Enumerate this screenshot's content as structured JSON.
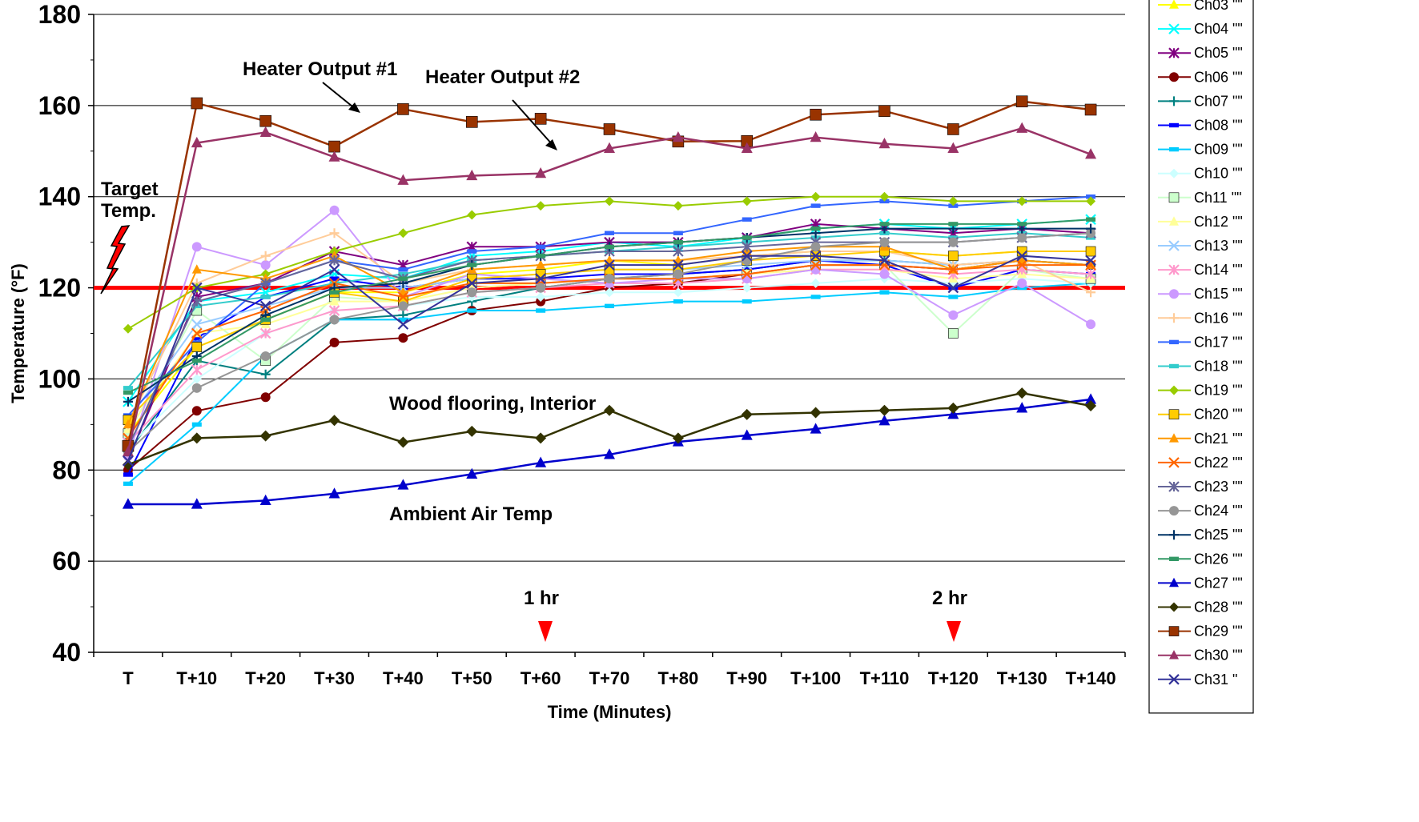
{
  "chart_data": {
    "type": "line",
    "xlabel": "Time (Minutes)",
    "ylabel": "Temperature (°F)",
    "ylim": [
      40,
      180
    ],
    "yticks": [
      40,
      60,
      80,
      100,
      120,
      140,
      160,
      180
    ],
    "grid": true,
    "legend_position": "right",
    "categories": [
      "T",
      "T+10",
      "T+20",
      "T+30",
      "T+40",
      "T+50",
      "T+60",
      "T+70",
      "T+80",
      "T+90",
      "T+100",
      "T+110",
      "T+120",
      "T+130",
      "T+140"
    ],
    "target_line": {
      "label": "Target Temp.",
      "value": 120,
      "color": "#ff0000"
    },
    "annotations": [
      {
        "text": "Heater Output #1"
      },
      {
        "text": "Heater Output #2"
      },
      {
        "text": "Wood flooring, Interior"
      },
      {
        "text": "Ambient Air Temp"
      }
    ],
    "time_markers": [
      {
        "label": "1 hr",
        "category": "T+60"
      },
      {
        "label": "2 hr",
        "category": "T+120"
      }
    ],
    "series": [
      {
        "name": "Ch03 \"\"",
        "color": "#ffff00",
        "marker": "triangle",
        "values": [
          88,
          107,
          113,
          119,
          119,
          123,
          124,
          126,
          125,
          127,
          128,
          128,
          127,
          128,
          128
        ]
      },
      {
        "name": "Ch04 \"\"",
        "color": "#00ffff",
        "marker": "x",
        "values": [
          95,
          117,
          119,
          123,
          122,
          127,
          128,
          130,
          129,
          131,
          133,
          134,
          133,
          134,
          135
        ]
      },
      {
        "name": "Ch05 \"\"",
        "color": "#800080",
        "marker": "star",
        "values": [
          82,
          118,
          121,
          128,
          125,
          129,
          129,
          130,
          130,
          131,
          134,
          133,
          132,
          133,
          132
        ]
      },
      {
        "name": "Ch06 \"\"",
        "color": "#800000",
        "marker": "circle",
        "values": [
          80,
          93,
          96,
          108,
          109,
          115,
          117,
          120,
          121,
          123,
          125,
          125,
          124,
          126,
          125
        ]
      },
      {
        "name": "Ch07 \"\"",
        "color": "#008080",
        "marker": "plus",
        "values": [
          84,
          104,
          101,
          113,
          114,
          117,
          120,
          122,
          123,
          124,
          126,
          126,
          125,
          126,
          125
        ]
      },
      {
        "name": "Ch08 \"\"",
        "color": "#0000ff",
        "marker": "dash",
        "values": [
          79,
          109,
          118,
          122,
          120,
          122,
          122,
          123,
          123,
          124,
          126,
          125,
          120,
          124,
          123
        ]
      },
      {
        "name": "Ch09 \"\"",
        "color": "#00ccff",
        "marker": "dash",
        "values": [
          77,
          90,
          105,
          113,
          113,
          115,
          115,
          116,
          117,
          117,
          118,
          119,
          118,
          120,
          121
        ]
      },
      {
        "name": "Ch10 \"\"",
        "color": "#ccffff",
        "marker": "diamond",
        "values": [
          85,
          100,
          110,
          115,
          116,
          118,
          118,
          119,
          119,
          120,
          121,
          122,
          121,
          122,
          121
        ]
      },
      {
        "name": "Ch11 \"\"",
        "color": "#ccffcc",
        "marker": "square",
        "values": [
          88,
          115,
          104,
          118,
          117,
          120,
          121,
          122,
          122,
          123,
          125,
          125,
          110,
          124,
          122
        ]
      },
      {
        "name": "Ch12 \"\"",
        "color": "#ffff99",
        "marker": "triangle",
        "values": [
          89,
          110,
          112,
          117,
          117,
          120,
          121,
          122,
          122,
          123,
          124,
          124,
          122,
          123,
          122
        ]
      },
      {
        "name": "Ch13 \"\"",
        "color": "#99ccff",
        "marker": "x",
        "values": [
          91,
          112,
          116,
          120,
          120,
          122,
          123,
          124,
          124,
          125,
          126,
          126,
          125,
          126,
          125
        ]
      },
      {
        "name": "Ch14 \"\"",
        "color": "#ff99cc",
        "marker": "star",
        "values": [
          86,
          102,
          110,
          115,
          116,
          119,
          120,
          121,
          121,
          122,
          124,
          124,
          123,
          124,
          123
        ]
      },
      {
        "name": "Ch15 \"\"",
        "color": "#cc99ff",
        "marker": "circle",
        "values": [
          83,
          129,
          125,
          137,
          118,
          123,
          122,
          121,
          122,
          122,
          124,
          123,
          114,
          121,
          112
        ]
      },
      {
        "name": "Ch16 \"\"",
        "color": "#ffcc99",
        "marker": "plus",
        "values": [
          90,
          121,
          127,
          132,
          121,
          124,
          125,
          126,
          126,
          127,
          128,
          128,
          125,
          126,
          119
        ]
      },
      {
        "name": "Ch17 \"\"",
        "color": "#3366ff",
        "marker": "dash",
        "values": [
          92,
          108,
          121,
          126,
          124,
          128,
          129,
          132,
          132,
          135,
          138,
          139,
          138,
          139,
          140
        ]
      },
      {
        "name": "Ch18 \"\"",
        "color": "#33cccc",
        "marker": "dash",
        "values": [
          98,
          116,
          118,
          121,
          123,
          126,
          127,
          128,
          129,
          130,
          131,
          132,
          131,
          132,
          131
        ]
      },
      {
        "name": "Ch19 \"\"",
        "color": "#99cc00",
        "marker": "diamond",
        "values": [
          111,
          120,
          123,
          128,
          132,
          136,
          138,
          139,
          138,
          139,
          140,
          140,
          139,
          139,
          139
        ]
      },
      {
        "name": "Ch20 \"\"",
        "color": "#ffcc00",
        "marker": "square",
        "values": [
          91,
          107,
          113,
          119,
          117,
          122,
          123,
          124,
          124,
          126,
          127,
          128,
          127,
          128,
          128
        ]
      },
      {
        "name": "Ch21 \"\"",
        "color": "#ff9900",
        "marker": "triangle",
        "values": [
          90,
          124,
          122,
          127,
          119,
          124,
          125,
          126,
          126,
          128,
          129,
          129,
          124,
          126,
          125
        ]
      },
      {
        "name": "Ch22 \"\"",
        "color": "#ff6600",
        "marker": "x",
        "values": [
          87,
          110,
          115,
          121,
          118,
          121,
          121,
          122,
          122,
          123,
          125,
          125,
          124,
          125,
          125
        ]
      },
      {
        "name": "Ch23 \"\"",
        "color": "#666699",
        "marker": "star",
        "values": [
          85,
          117,
          121,
          126,
          122,
          126,
          127,
          128,
          128,
          129,
          130,
          130,
          130,
          131,
          132
        ]
      },
      {
        "name": "Ch24 \"\"",
        "color": "#969696",
        "marker": "circle",
        "values": [
          84,
          98,
          105,
          113,
          116,
          119,
          120,
          122,
          123,
          126,
          129,
          130,
          130,
          131,
          132
        ]
      },
      {
        "name": "Ch25 \"\"",
        "color": "#003366",
        "marker": "plus",
        "values": [
          95,
          105,
          114,
          120,
          121,
          125,
          127,
          129,
          130,
          131,
          132,
          133,
          133,
          133,
          133
        ]
      },
      {
        "name": "Ch26 \"\"",
        "color": "#339966",
        "marker": "dash",
        "values": [
          97,
          104,
          113,
          119,
          122,
          125,
          127,
          129,
          130,
          131,
          133,
          134,
          134,
          134,
          135
        ]
      },
      {
        "name": "Ch27 \"\"",
        "color": "#0000cc",
        "marker": "triangle",
        "values": [
          72.5,
          72.5,
          73.3,
          74.8,
          76.7,
          79.1,
          81.6,
          83.4,
          86.2,
          87.6,
          89,
          90.8,
          92.2,
          93.6,
          95.5
        ]
      },
      {
        "name": "Ch28 \"\"",
        "color": "#333300",
        "marker": "diamond",
        "values": [
          81.2,
          87,
          87.5,
          90.9,
          86.1,
          88.5,
          87,
          93.1,
          87,
          92.2,
          92.6,
          93.1,
          93.6,
          96.9,
          94.1
        ]
      },
      {
        "name": "Ch29 \"\"",
        "color": "#993300",
        "marker": "square",
        "values": [
          85.3,
          160.5,
          156.6,
          151,
          159.2,
          156.4,
          157.1,
          154.8,
          152.1,
          152.2,
          158,
          158.8,
          154.8,
          160.9,
          159.1
        ]
      },
      {
        "name": "Ch30 \"\"",
        "color": "#993366",
        "marker": "triangle",
        "values": [
          84,
          151.8,
          154.1,
          148.7,
          143.6,
          144.6,
          145.1,
          150.6,
          153,
          150.6,
          153,
          151.6,
          150.6,
          155,
          149.3
        ]
      },
      {
        "name": "Ch31 \"",
        "color": "#333399",
        "marker": "x",
        "values": [
          82,
          120,
          116,
          124,
          112,
          121,
          122,
          125,
          125,
          127,
          127,
          126,
          120,
          127,
          126
        ]
      }
    ]
  }
}
